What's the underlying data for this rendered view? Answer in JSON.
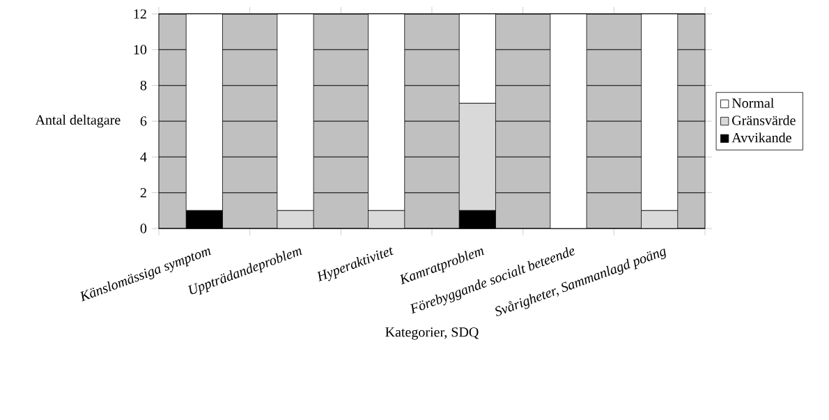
{
  "chart_data": {
    "type": "bar",
    "stacked": true,
    "xlabel": "Kategorier, SDQ",
    "ylabel": "Antal deltagare",
    "categories": [
      "Känslomässiga symptom",
      "Uppträdandeproblem",
      "Hyperaktivitet",
      "Kamratproblem",
      "Förebyggande socialt beteende",
      "Svårigheter, Sammanlagd poäng"
    ],
    "series": [
      {
        "name": "Avvikande",
        "color": "#000000",
        "values": [
          1,
          0,
          0,
          1,
          0,
          0
        ]
      },
      {
        "name": "Gränsvärde",
        "color": "#d9d9d9",
        "values": [
          0,
          1,
          1,
          6,
          0,
          1
        ]
      },
      {
        "name": "Normal",
        "color": "#ffffff",
        "values": [
          11,
          11,
          11,
          5,
          12,
          11
        ]
      }
    ],
    "ylim": [
      0,
      12
    ],
    "yticks": [
      0,
      2,
      4,
      6,
      8,
      10,
      12
    ],
    "grid": "y",
    "legend": "right"
  }
}
